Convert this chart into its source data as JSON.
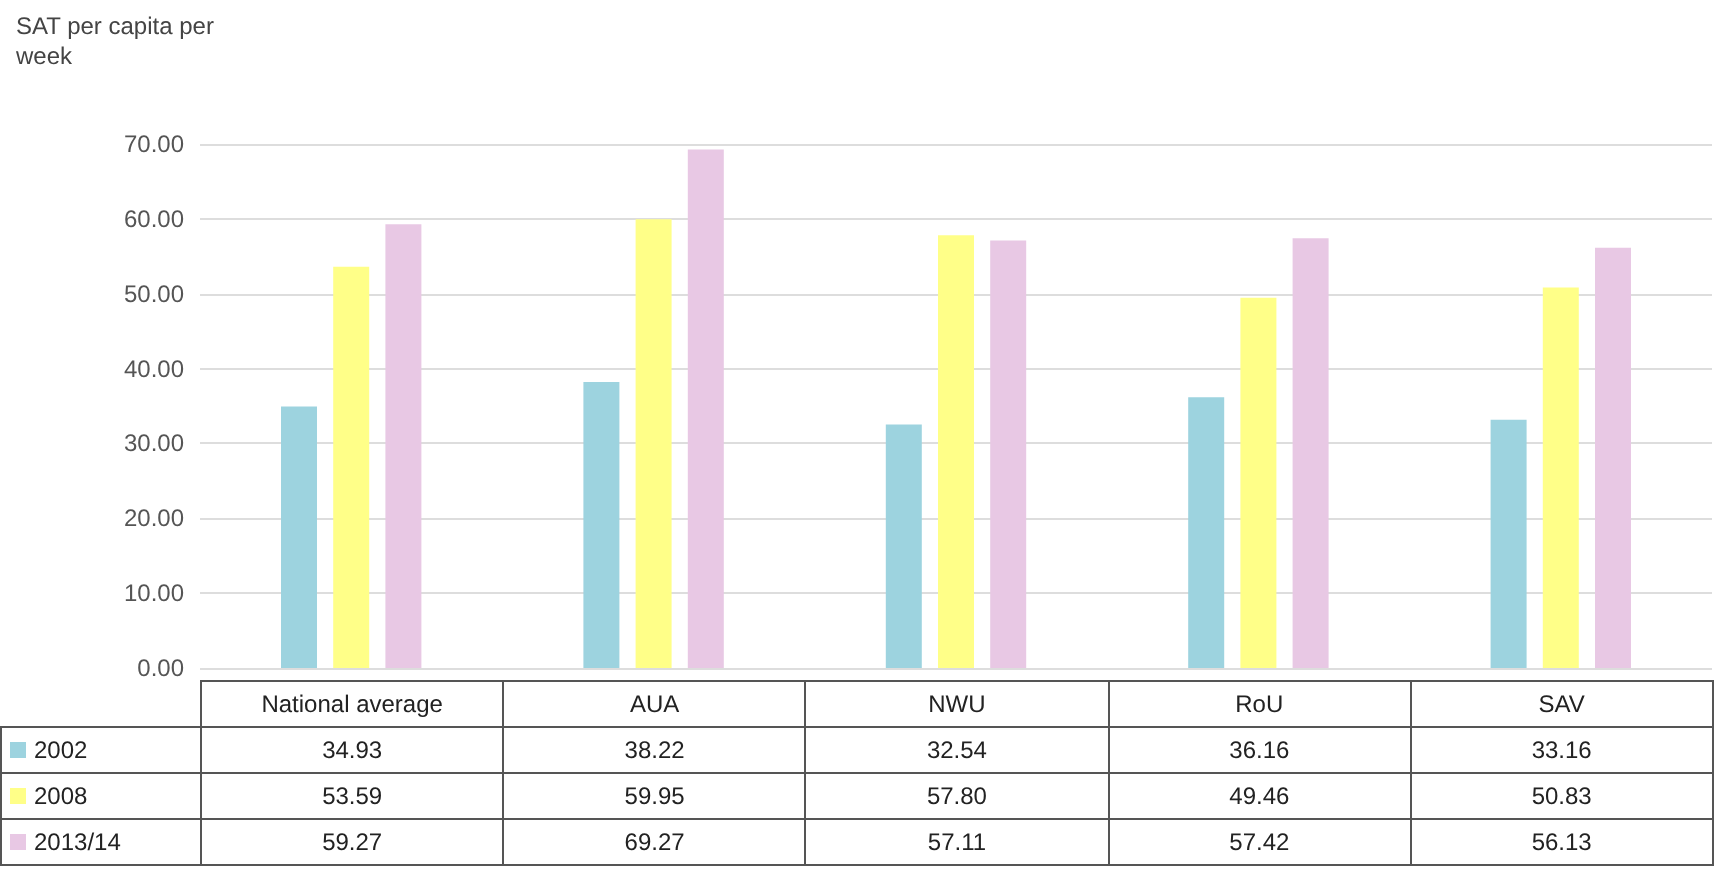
{
  "chart_data": {
    "type": "bar",
    "ylabel": "SAT per capita per week",
    "categories": [
      "National average",
      "AUA",
      "NWU",
      "RoU",
      "SAV"
    ],
    "series": [
      {
        "name": "2002",
        "color": "#9dd3df",
        "values": [
          34.93,
          38.22,
          32.54,
          36.16,
          33.16
        ]
      },
      {
        "name": "2008",
        "color": "#ffff88",
        "values": [
          53.59,
          59.95,
          57.8,
          49.46,
          50.83
        ]
      },
      {
        "name": "2013/14",
        "color": "#e8c8e4",
        "values": [
          59.27,
          69.27,
          57.11,
          57.42,
          56.13
        ]
      }
    ],
    "value_labels": [
      [
        "34.93",
        "38.22",
        "32.54",
        "36.16",
        "33.16"
      ],
      [
        "53.59",
        "59.95",
        "57.80",
        "49.46",
        "50.83"
      ],
      [
        "59.27",
        "69.27",
        "57.11",
        "57.42",
        "56.13"
      ]
    ],
    "ylim": [
      0,
      70
    ],
    "yticks": [
      {
        "value": 0,
        "label": "0.00"
      },
      {
        "value": 10,
        "label": "10.00"
      },
      {
        "value": 20,
        "label": "20.00"
      },
      {
        "value": 30,
        "label": "30.00"
      },
      {
        "value": 40,
        "label": "40.00"
      },
      {
        "value": 50,
        "label": "50.00"
      },
      {
        "value": 60,
        "label": "60.00"
      },
      {
        "value": 70,
        "label": "70.00"
      }
    ],
    "grid": "y",
    "legend": "bottom"
  }
}
